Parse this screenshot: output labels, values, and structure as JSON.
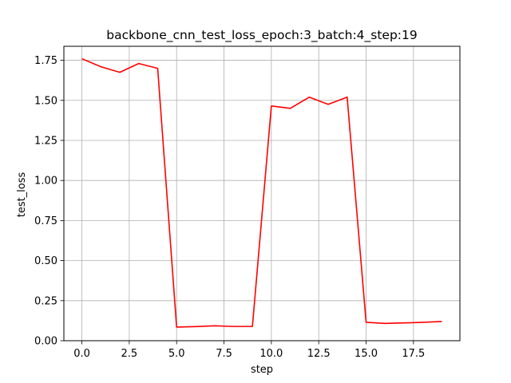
{
  "chart_data": {
    "type": "line",
    "title": "backbone_cnn_test_loss_epoch:3_batch:4_step:19",
    "xlabel": "step",
    "ylabel": "test_loss",
    "xlim": [
      -0.95,
      19.95
    ],
    "ylim": [
      0.0,
      1.8375
    ],
    "xticks": [
      0.0,
      2.5,
      5.0,
      7.5,
      10.0,
      12.5,
      15.0,
      17.5
    ],
    "xtick_labels": [
      "0.0",
      "2.5",
      "5.0",
      "7.5",
      "10.0",
      "12.5",
      "15.0",
      "17.5"
    ],
    "yticks": [
      0.0,
      0.25,
      0.5,
      0.75,
      1.0,
      1.25,
      1.5,
      1.75
    ],
    "ytick_labels": [
      "0.00",
      "0.25",
      "0.50",
      "0.75",
      "1.00",
      "1.25",
      "1.50",
      "1.75"
    ],
    "grid": true,
    "series": [
      {
        "color": "#ff0000",
        "x": [
          0,
          1,
          2,
          3,
          4,
          5,
          6,
          7,
          8,
          9,
          10,
          11,
          12,
          13,
          14,
          15,
          16,
          17,
          18,
          19
        ],
        "values": [
          1.76,
          1.71,
          1.675,
          1.73,
          1.7,
          0.085,
          0.088,
          0.093,
          0.089,
          0.089,
          1.465,
          1.45,
          1.52,
          1.475,
          1.52,
          0.115,
          0.108,
          0.111,
          0.115,
          0.12
        ]
      }
    ]
  }
}
